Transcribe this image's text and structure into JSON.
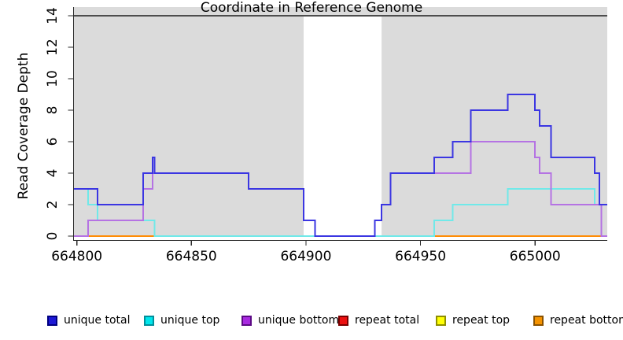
{
  "chart_data": {
    "type": "line",
    "subtype": "step",
    "title": "",
    "xlabel": "Coordinate in Reference Genome",
    "ylabel": "Read Coverage Depth",
    "xlim": [
      664798.4,
      665031.5
    ],
    "ylim": [
      0,
      14
    ],
    "x_tick_values": [
      664800,
      664850,
      664900,
      664950,
      665000
    ],
    "x_tick_labels": [
      "664800",
      "664850",
      "664900",
      "664950",
      "665000"
    ],
    "y_tick_values": [
      0,
      2,
      4,
      6,
      8,
      10,
      12,
      14
    ],
    "y_tick_labels": [
      "0",
      "2",
      "4",
      "6",
      "8",
      "10",
      "12",
      "14"
    ],
    "grid": false,
    "shaded_region_color": "#dbdbdb",
    "shaded_regions": [
      {
        "x0": 664798.4,
        "x1": 664899
      },
      {
        "x0": 664933,
        "x1": 665031.5
      }
    ],
    "unshaded_gap": {
      "x0": 664899,
      "x1": 664933,
      "color": "#ffffff"
    },
    "top_boundary_line": {
      "y": 14,
      "color": "#4d4d4d"
    },
    "series": [
      {
        "name": "repeat total",
        "line_color": "#e60000",
        "x_end": 665031.5,
        "steps": [
          [
            664798.4,
            0
          ]
        ]
      },
      {
        "name": "repeat top",
        "line_color": "#ffe600",
        "x_end": 665031.5,
        "steps": [
          [
            664798.4,
            0
          ]
        ]
      },
      {
        "name": "repeat bottom",
        "line_color": "#ff8c05",
        "x_end": 665031.5,
        "steps": [
          [
            664798.4,
            0
          ]
        ]
      },
      {
        "name": "unique top",
        "line_color": "#70e9e9",
        "x_end": 665031.5,
        "steps": [
          [
            664798.4,
            3
          ],
          [
            664805,
            2
          ],
          [
            664809,
            1
          ],
          [
            664834,
            0
          ],
          [
            664956,
            1
          ],
          [
            664964,
            2
          ],
          [
            664988,
            3
          ],
          [
            665026,
            2
          ]
        ]
      },
      {
        "name": "unique bottom",
        "line_color": "#b573e3",
        "x_end": 665031.5,
        "steps": [
          [
            664798.4,
            0
          ],
          [
            664805,
            1
          ],
          [
            664829,
            3
          ],
          [
            664833,
            4
          ],
          [
            664875,
            3
          ],
          [
            664899,
            1
          ],
          [
            664904,
            0
          ],
          [
            664930,
            1
          ],
          [
            664933,
            2
          ],
          [
            664937,
            4
          ],
          [
            664972,
            6
          ],
          [
            665000,
            5
          ],
          [
            665002,
            4
          ],
          [
            665007,
            2
          ],
          [
            665029,
            0
          ]
        ]
      },
      {
        "name": "unique total",
        "line_color": "#3b36e2",
        "x_end": 665031.5,
        "steps": [
          [
            664798.4,
            3
          ],
          [
            664809,
            2
          ],
          [
            664829,
            4
          ],
          [
            664833,
            5
          ],
          [
            664834,
            4
          ],
          [
            664875,
            3
          ],
          [
            664899,
            1
          ],
          [
            664904,
            0
          ],
          [
            664930,
            1
          ],
          [
            664933,
            2
          ],
          [
            664937,
            4
          ],
          [
            664956,
            5
          ],
          [
            664964,
            6
          ],
          [
            664972,
            8
          ],
          [
            664988,
            9
          ],
          [
            665000,
            8
          ],
          [
            665002,
            7
          ],
          [
            665007,
            5
          ],
          [
            665026,
            4
          ],
          [
            665028,
            2
          ]
        ]
      }
    ],
    "baseline_blend_segments": [
      {
        "x0": 664834,
        "x1": 664956,
        "y": 0,
        "color": "#8ecf9d"
      }
    ]
  },
  "legend": {
    "items": [
      {
        "label": "unique total",
        "color": "#1d18d6",
        "border": "#000080"
      },
      {
        "label": "unique top",
        "color": "#00e6ec",
        "border": "#008f9b"
      },
      {
        "label": "unique bottom",
        "color": "#a82ae0",
        "border": "#5c0a85"
      },
      {
        "label": "repeat total",
        "color": "#eb1010",
        "border": "#7a0000"
      },
      {
        "label": "repeat top",
        "color": "#ffff05",
        "border": "#8f8f00"
      },
      {
        "label": "repeat bottom",
        "color": "#f59300",
        "border": "#8a5200"
      }
    ]
  }
}
